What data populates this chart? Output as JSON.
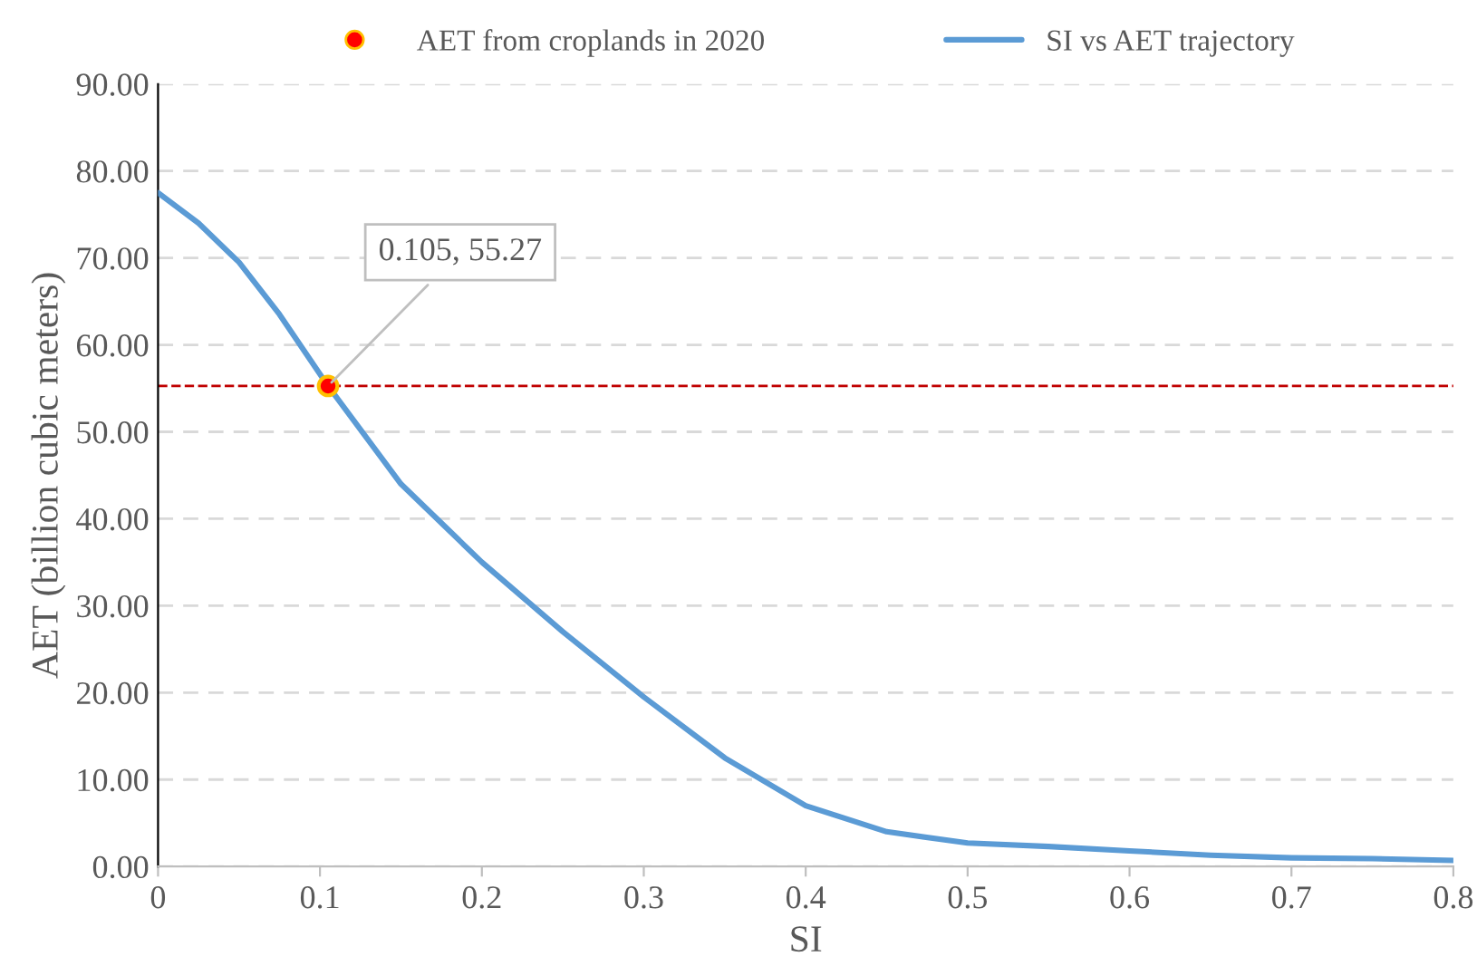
{
  "chart_data": {
    "type": "line",
    "xlabel": "SI",
    "ylabel": "AET (billion cubic meters)",
    "series": [
      {
        "name": "AET from croplands in 2020",
        "type": "scatter",
        "marker": "circle",
        "color": "#ff0000",
        "x": [
          0.105
        ],
        "values": [
          55.27
        ]
      },
      {
        "name": "SI vs AET trajectory",
        "marker": "none",
        "color": "#5b9bd5",
        "x": [
          0,
          0.025,
          0.05,
          0.075,
          0.105,
          0.15,
          0.2,
          0.25,
          0.3,
          0.35,
          0.4,
          0.45,
          0.5,
          0.55,
          0.6,
          0.65,
          0.7,
          0.75,
          0.8
        ],
        "values": [
          77.5,
          74,
          69.5,
          63.5,
          55.27,
          44,
          35,
          27,
          19.5,
          12.5,
          7,
          4,
          2.7,
          2.3,
          1.8,
          1.3,
          1.0,
          0.9,
          0.7
        ]
      }
    ],
    "xlim": [
      0,
      0.8
    ],
    "xticks": [
      0,
      0.1,
      0.2,
      0.3,
      0.4,
      0.5,
      0.6,
      0.7,
      0.8
    ],
    "ylim": [
      0,
      90
    ],
    "yticks": [
      {
        "value": 0,
        "label": "0.00"
      },
      {
        "value": 10,
        "label": "10.00"
      },
      {
        "value": 20,
        "label": "20.00"
      },
      {
        "value": 30,
        "label": "30.00"
      },
      {
        "value": 40,
        "label": "40.00"
      },
      {
        "value": 50,
        "label": "50.00"
      },
      {
        "value": 60,
        "label": "60.00"
      },
      {
        "value": 70,
        "label": "70.00"
      },
      {
        "value": 80,
        "label": "80.00"
      },
      {
        "value": 90,
        "label": "90.00"
      }
    ],
    "ref_lines": [
      {
        "axis": "y",
        "value": 55.27,
        "color": "#c00000",
        "line_style": "dashed"
      }
    ],
    "annotations": [
      {
        "text": "0.105, 55.27",
        "x": 0.105,
        "y": 55.27
      }
    ],
    "grid": "y",
    "legend": "top"
  }
}
